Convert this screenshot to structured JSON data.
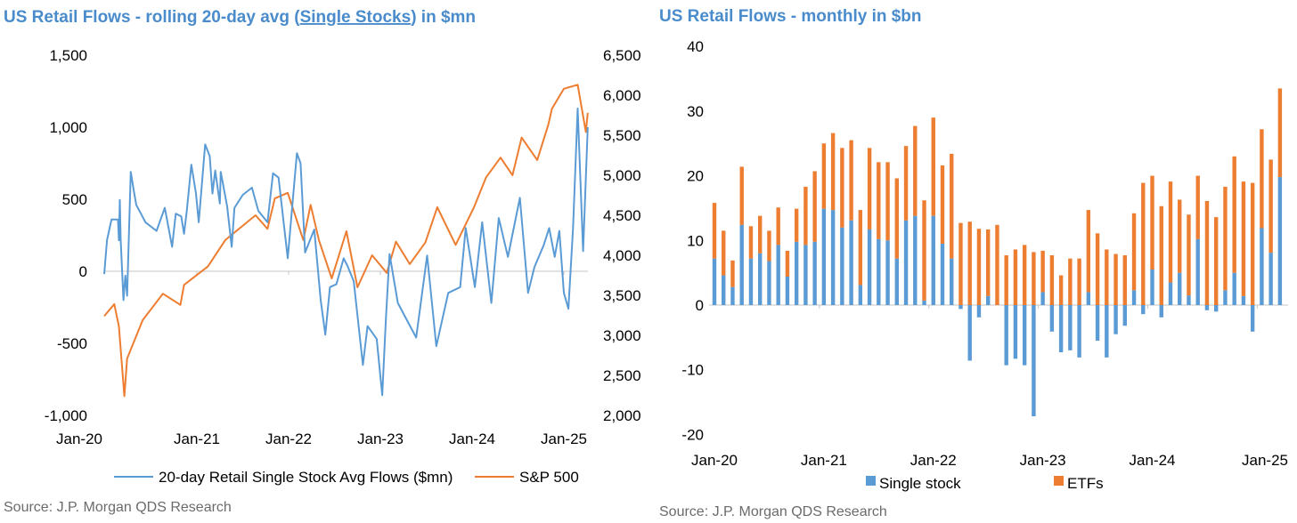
{
  "chart_data": [
    {
      "type": "line",
      "title_parts": [
        "US Retail Flows - rolling 20-day avg (",
        "Single Stocks",
        ") in $mn"
      ],
      "x_ticks": [
        "Jan-20",
        "Jan-21",
        "Jan-22",
        "Jan-23",
        "Jan-24",
        "Jan-25"
      ],
      "y_left": {
        "ticks": [
          "1,500",
          "1,000",
          "500",
          "0",
          "-500",
          "-1,000"
        ],
        "range": [
          -1000,
          1500
        ]
      },
      "y_right": {
        "ticks": [
          "6,500",
          "6,000",
          "5,500",
          "5,000",
          "4,500",
          "4,000",
          "3,500",
          "3,000",
          "2,500",
          "2,000"
        ],
        "range": [
          2000,
          6500
        ]
      },
      "x_range_years": [
        2020.0,
        2025.27
      ],
      "series": [
        {
          "name": "20-day Retail Single Stock Avg Flows ($mn)",
          "axis": "left",
          "color": "#5b9bd5",
          "x": [
            2019.99,
            2020.02,
            2020.07,
            2020.14,
            2020.15,
            2020.16,
            2020.17,
            2020.2,
            2020.22,
            2020.24,
            2020.28,
            2020.31,
            2020.34,
            2020.39,
            2020.44,
            2020.56,
            2020.65,
            2020.73,
            2020.77,
            2020.83,
            2020.86,
            2020.89,
            2020.94,
            2020.99,
            2021.02,
            2021.09,
            2021.14,
            2021.17,
            2021.2,
            2021.25,
            2021.26,
            2021.33,
            2021.38,
            2021.41,
            2021.5,
            2021.6,
            2021.67,
            2021.77,
            2021.83,
            2021.89,
            2021.99,
            2022.09,
            2022.13,
            2022.18,
            2022.28,
            2022.35,
            2022.4,
            2022.45,
            2022.52,
            2022.6,
            2022.64,
            2022.71,
            2022.77,
            2022.81,
            2022.86,
            2022.96,
            2023.02,
            2023.06,
            2023.1,
            2023.19,
            2023.29,
            2023.39,
            2023.51,
            2023.61,
            2023.74,
            2023.87,
            2023.93,
            2024.03,
            2024.11,
            2024.21,
            2024.29,
            2024.39,
            2024.52,
            2024.61,
            2024.68,
            2024.78,
            2024.84,
            2024.9,
            2024.95,
            2025.0,
            2025.05,
            2025.1,
            2025.15,
            2025.21,
            2025.26
          ],
          "y": [
            -20,
            215,
            360,
            360,
            215,
            495,
            215,
            -200,
            -30,
            -170,
            690,
            570,
            460,
            400,
            340,
            280,
            440,
            170,
            400,
            380,
            260,
            420,
            740,
            540,
            340,
            880,
            800,
            540,
            700,
            470,
            690,
            450,
            170,
            440,
            530,
            580,
            420,
            340,
            680,
            650,
            90,
            820,
            750,
            130,
            290,
            -200,
            -440,
            -110,
            -90,
            90,
            40,
            -70,
            -420,
            -650,
            -380,
            -470,
            -860,
            -330,
            120,
            -220,
            -340,
            -460,
            110,
            -520,
            -150,
            -110,
            300,
            -110,
            340,
            -220,
            370,
            100,
            510,
            -150,
            30,
            180,
            300,
            100,
            280,
            -150,
            -260,
            300,
            1130,
            140,
            1000
          ]
        },
        {
          "name": "S&P 500",
          "axis": "right",
          "color": "#ed7d31",
          "x": [
            2019.99,
            2020.1,
            2020.15,
            2020.21,
            2020.24,
            2020.41,
            2020.63,
            2020.82,
            2020.86,
            2021.12,
            2021.31,
            2021.64,
            2021.77,
            2021.85,
            2021.99,
            2022.16,
            2022.24,
            2022.33,
            2022.47,
            2022.63,
            2022.75,
            2022.91,
            2023.07,
            2023.17,
            2023.32,
            2023.49,
            2023.62,
            2023.82,
            2024.02,
            2024.15,
            2024.31,
            2024.44,
            2024.54,
            2024.71,
            2024.83,
            2024.87,
            2025.0,
            2025.15,
            2025.24,
            2025.26
          ],
          "y": [
            3240,
            3390,
            3110,
            2240,
            2710,
            3190,
            3520,
            3380,
            3630,
            3860,
            4190,
            4500,
            4330,
            4710,
            4780,
            4190,
            4630,
            4190,
            3710,
            4300,
            3600,
            4000,
            3780,
            4170,
            3890,
            4160,
            4600,
            4130,
            4600,
            4970,
            5220,
            5000,
            5470,
            5190,
            5630,
            5830,
            6080,
            6130,
            5540,
            5780
          ]
        }
      ],
      "legend": [
        "20-day Retail Single Stock Avg Flows ($mn)",
        "S&P 500"
      ],
      "legend_position": "bottom",
      "source": "Source: J.P. Morgan QDS Research"
    },
    {
      "type": "bar",
      "stacked": true,
      "title": "US Retail Flows - monthly in $bn",
      "x_ticks": [
        "Jan-20",
        "Jan-21",
        "Jan-22",
        "Jan-23",
        "Jan-24",
        "Jan-25"
      ],
      "y_ticks": [
        "40",
        "30",
        "20",
        "10",
        "0",
        "-10",
        "-20"
      ],
      "ylim": [
        -20,
        40
      ],
      "categories_desc": "monthly, Jan-20 to Mar-25",
      "series": [
        {
          "name": "Single stock",
          "color": "#5b9bd5",
          "values": [
            7.2,
            4.6,
            2.8,
            12.4,
            7.2,
            8.0,
            6.8,
            9.3,
            4.4,
            9.8,
            9.3,
            9.8,
            14.9,
            14.7,
            12.0,
            13.1,
            3.1,
            11.7,
            10.2,
            10.0,
            7.2,
            13.1,
            13.8,
            0.7,
            13.8,
            9.5,
            7.2,
            -0.6,
            -8.6,
            -1.9,
            1.4,
            0,
            -9.3,
            -8.3,
            -9.3,
            -17.2,
            2.0,
            -4.1,
            -7.3,
            -7.0,
            -8.1,
            2.0,
            -5.5,
            -8.1,
            -4.5,
            -3.2,
            2.3,
            -1.4,
            5.5,
            -1.9,
            3.5,
            5.0,
            1.5,
            10.2,
            -0.8,
            -1.0,
            2.3,
            5.0,
            1.4,
            -4.1,
            11.9,
            8.1,
            19.8
          ]
        },
        {
          "name": "ETFs",
          "color": "#ed7d31",
          "values": [
            8.6,
            6.9,
            4.1,
            9.0,
            5.0,
            5.8,
            4.7,
            5.8,
            4.0,
            5.1,
            9.0,
            10.9,
            10.1,
            11.9,
            12.3,
            12.4,
            11.6,
            12.6,
            11.9,
            12.1,
            12.4,
            11.5,
            13.9,
            15.5,
            15.2,
            12.1,
            16.2,
            12.7,
            12.9,
            11.8,
            10.3,
            12.4,
            7.7,
            8.6,
            9.3,
            8.2,
            6.4,
            7.7,
            4.6,
            7.2,
            7.2,
            12.7,
            11.1,
            8.6,
            7.9,
            7.7,
            11.9,
            18.9,
            14.5,
            15.3,
            15.6,
            11.3,
            12.5,
            9.8,
            16.1,
            13.6,
            16.0,
            18.0,
            17.7,
            18.9,
            15.3,
            14.4,
            13.7
          ]
        }
      ],
      "legend": [
        "Single stock",
        "ETFs"
      ],
      "legend_position": "bottom",
      "source": "Source: J.P. Morgan QDS Research"
    }
  ]
}
